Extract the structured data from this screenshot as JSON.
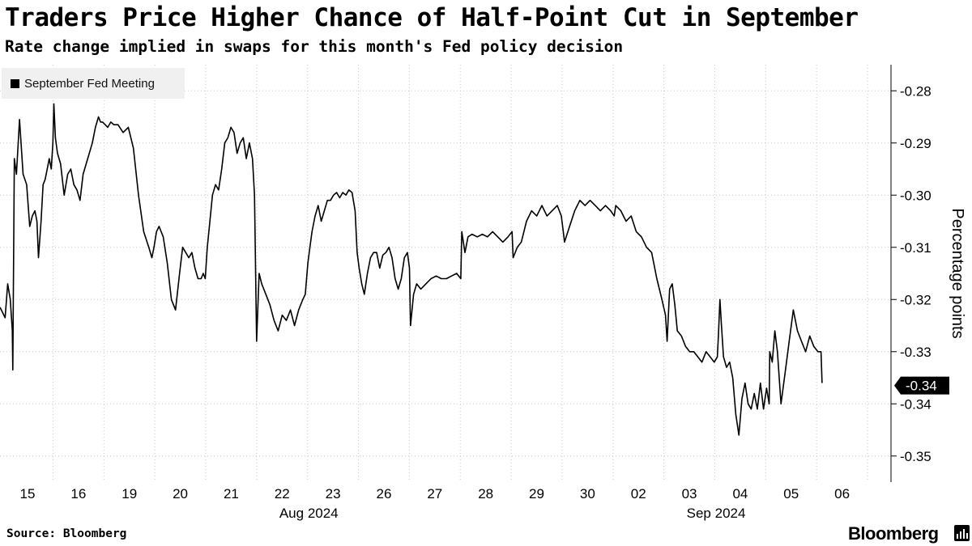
{
  "header": {
    "title": "Traders Price Higher Chance of Half-Point Cut in September",
    "subtitle": "Rate change implied in swaps for this month's Fed policy decision"
  },
  "footer": {
    "source": "Source: Bloomberg",
    "brand": "Bloomberg"
  },
  "chart_data": {
    "type": "line",
    "ylabel": "Percentage points",
    "ylim": [
      -0.355,
      -0.275
    ],
    "yticks": [
      -0.28,
      -0.29,
      -0.3,
      -0.31,
      -0.32,
      -0.33,
      -0.34,
      -0.35
    ],
    "ytick_labels": [
      "-0.28",
      "-0.29",
      "-0.30",
      "-0.31",
      "-0.32",
      "-0.33",
      "-0.34",
      "-0.35"
    ],
    "grid": true,
    "legend_position": "top-left",
    "last_value_label": "-0.34",
    "x_day_labels": [
      "15",
      "16",
      "19",
      "20",
      "21",
      "22",
      "23",
      "26",
      "27",
      "28",
      "29",
      "30",
      "02",
      "03",
      "04",
      "05",
      "06"
    ],
    "x_month_labels": [
      {
        "label": "Aug 2024",
        "day_index": 5
      },
      {
        "label": "Sep 2024",
        "day_index": 13
      }
    ],
    "line_color": "#000000",
    "series": [
      {
        "name": "September Fed Meeting",
        "x": [
          0.0,
          0.05,
          0.1,
          0.15,
          0.2,
          0.24,
          0.25,
          0.28,
          0.32,
          0.38,
          0.45,
          0.52,
          0.58,
          0.63,
          0.68,
          0.72,
          0.75,
          0.8,
          0.84,
          0.88,
          0.92,
          0.96,
          1.0,
          1.03,
          1.05,
          1.08,
          1.12,
          1.18,
          1.25,
          1.32,
          1.38,
          1.44,
          1.5,
          1.56,
          1.62,
          1.68,
          1.74,
          1.8,
          1.86,
          1.92,
          1.96,
          2.0,
          2.05,
          2.1,
          2.16,
          2.22,
          2.3,
          2.4,
          2.5,
          2.6,
          2.7,
          2.8,
          2.9,
          2.96,
          3.0,
          3.05,
          3.1,
          3.18,
          3.26,
          3.34,
          3.42,
          3.5,
          3.56,
          3.62,
          3.68,
          3.74,
          3.8,
          3.86,
          3.92,
          3.96,
          4.0,
          4.04,
          4.08,
          4.14,
          4.2,
          4.26,
          4.32,
          4.38,
          4.44,
          4.5,
          4.56,
          4.62,
          4.68,
          4.74,
          4.8,
          4.86,
          4.92,
          4.96,
          5.0,
          5.05,
          5.1,
          5.18,
          5.26,
          5.34,
          5.42,
          5.5,
          5.58,
          5.66,
          5.74,
          5.82,
          5.9,
          5.95,
          6.0,
          6.04,
          6.08,
          6.14,
          6.2,
          6.26,
          6.32,
          6.38,
          6.44,
          6.5,
          6.56,
          6.62,
          6.68,
          6.74,
          6.8,
          6.86,
          6.92,
          6.96,
          7.0,
          7.05,
          7.1,
          7.16,
          7.22,
          7.28,
          7.34,
          7.4,
          7.46,
          7.52,
          7.58,
          7.64,
          7.7,
          7.76,
          7.82,
          7.88,
          7.94,
          7.98,
          8.0,
          8.06,
          8.12,
          8.2,
          8.3,
          8.4,
          8.5,
          8.6,
          8.7,
          8.8,
          8.9,
          8.98,
          9.0,
          9.06,
          9.12,
          9.2,
          9.3,
          9.4,
          9.5,
          9.6,
          9.7,
          9.8,
          9.9,
          9.98,
          10.0,
          10.08,
          10.16,
          10.26,
          10.36,
          10.46,
          10.56,
          10.66,
          10.76,
          10.86,
          10.94,
          10.99,
          11.0,
          11.1,
          11.2,
          11.3,
          11.4,
          11.5,
          11.6,
          11.7,
          11.8,
          11.9,
          11.97,
          12.0,
          12.1,
          12.2,
          12.3,
          12.4,
          12.5,
          12.6,
          12.7,
          12.8,
          12.9,
          12.97,
          13.0,
          13.05,
          13.1,
          13.15,
          13.2,
          13.28,
          13.36,
          13.44,
          13.52,
          13.6,
          13.68,
          13.76,
          13.84,
          13.92,
          13.98,
          14.0,
          14.03,
          14.06,
          14.1,
          14.16,
          14.22,
          14.28,
          14.34,
          14.4,
          14.46,
          14.52,
          14.58,
          14.64,
          14.7,
          14.76,
          14.82,
          14.88,
          14.94,
          14.99,
          15.0,
          15.05,
          15.1,
          15.15,
          15.22,
          15.3,
          15.38,
          15.46,
          15.54,
          15.62,
          15.7,
          15.78,
          15.86,
          15.94,
          16.0,
          16.02
        ],
        "y": [
          -0.3215,
          -0.3225,
          -0.3235,
          -0.317,
          -0.32,
          -0.326,
          -0.3335,
          -0.293,
          -0.296,
          -0.2855,
          -0.296,
          -0.298,
          -0.306,
          -0.304,
          -0.303,
          -0.305,
          -0.312,
          -0.305,
          -0.298,
          -0.297,
          -0.295,
          -0.293,
          -0.295,
          -0.29,
          -0.2825,
          -0.289,
          -0.292,
          -0.294,
          -0.3,
          -0.296,
          -0.295,
          -0.298,
          -0.299,
          -0.301,
          -0.296,
          -0.294,
          -0.292,
          -0.29,
          -0.287,
          -0.285,
          -0.286,
          -0.286,
          -0.2865,
          -0.287,
          -0.286,
          -0.2865,
          -0.2865,
          -0.288,
          -0.287,
          -0.291,
          -0.3,
          -0.307,
          -0.31,
          -0.312,
          -0.31,
          -0.307,
          -0.306,
          -0.308,
          -0.313,
          -0.32,
          -0.322,
          -0.315,
          -0.31,
          -0.311,
          -0.312,
          -0.311,
          -0.314,
          -0.316,
          -0.316,
          -0.315,
          -0.316,
          -0.31,
          -0.306,
          -0.3,
          -0.298,
          -0.299,
          -0.295,
          -0.29,
          -0.289,
          -0.287,
          -0.288,
          -0.292,
          -0.29,
          -0.289,
          -0.293,
          -0.29,
          -0.293,
          -0.3,
          -0.328,
          -0.315,
          -0.317,
          -0.319,
          -0.321,
          -0.324,
          -0.326,
          -0.323,
          -0.324,
          -0.322,
          -0.325,
          -0.322,
          -0.32,
          -0.319,
          -0.313,
          -0.31,
          -0.307,
          -0.304,
          -0.302,
          -0.305,
          -0.303,
          -0.301,
          -0.301,
          -0.3,
          -0.2995,
          -0.3005,
          -0.2995,
          -0.3,
          -0.299,
          -0.2995,
          -0.303,
          -0.311,
          -0.314,
          -0.317,
          -0.319,
          -0.315,
          -0.312,
          -0.311,
          -0.311,
          -0.314,
          -0.3115,
          -0.311,
          -0.31,
          -0.312,
          -0.316,
          -0.318,
          -0.316,
          -0.312,
          -0.311,
          -0.314,
          -0.325,
          -0.319,
          -0.317,
          -0.318,
          -0.317,
          -0.316,
          -0.3155,
          -0.316,
          -0.316,
          -0.3155,
          -0.315,
          -0.316,
          -0.307,
          -0.311,
          -0.308,
          -0.3075,
          -0.308,
          -0.3075,
          -0.308,
          -0.307,
          -0.308,
          -0.309,
          -0.308,
          -0.307,
          -0.312,
          -0.31,
          -0.309,
          -0.305,
          -0.303,
          -0.304,
          -0.302,
          -0.304,
          -0.303,
          -0.302,
          -0.304,
          -0.308,
          -0.309,
          -0.306,
          -0.303,
          -0.301,
          -0.302,
          -0.301,
          -0.302,
          -0.303,
          -0.302,
          -0.303,
          -0.304,
          -0.302,
          -0.303,
          -0.305,
          -0.304,
          -0.307,
          -0.308,
          -0.31,
          -0.311,
          -0.316,
          -0.32,
          -0.323,
          -0.328,
          -0.318,
          -0.317,
          -0.321,
          -0.326,
          -0.327,
          -0.329,
          -0.33,
          -0.33,
          -0.331,
          -0.332,
          -0.33,
          -0.331,
          -0.332,
          -0.331,
          -0.327,
          -0.32,
          -0.325,
          -0.331,
          -0.333,
          -0.332,
          -0.335,
          -0.342,
          -0.346,
          -0.339,
          -0.336,
          -0.34,
          -0.341,
          -0.338,
          -0.341,
          -0.336,
          -0.341,
          -0.337,
          -0.34,
          -0.33,
          -0.332,
          -0.326,
          -0.33,
          -0.34,
          -0.334,
          -0.328,
          -0.322,
          -0.326,
          -0.328,
          -0.33,
          -0.327,
          -0.329,
          -0.33,
          -0.33,
          -0.336
        ]
      }
    ]
  }
}
